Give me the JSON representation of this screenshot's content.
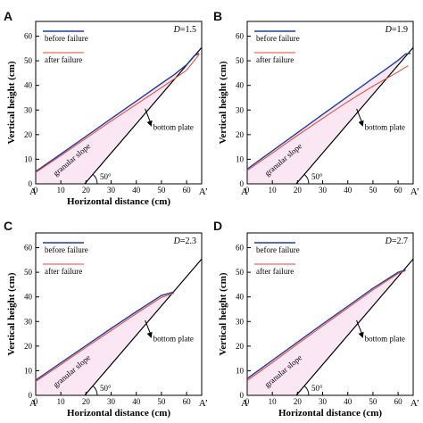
{
  "colors": {
    "before": "#1f3f9a",
    "after": "#e0483a",
    "fill": "#fbe6f4",
    "axis": "#000000"
  },
  "chart_data": [
    {
      "type": "line",
      "panel": "A",
      "label_D": "D",
      "label_val": "=1.5",
      "xlabel": "Horizontal distance (cm)",
      "ylabel": "Vertical height (cm)",
      "xlim": [
        0,
        66
      ],
      "ylim": [
        0,
        66
      ],
      "xticks": [
        "0",
        "10",
        "20",
        "30",
        "40",
        "50",
        "60"
      ],
      "yticks": [
        "0",
        "10",
        "20",
        "30",
        "40",
        "50",
        "60"
      ],
      "x_end_labels": [
        "A",
        "A’"
      ],
      "legend": [
        "before failure",
        "after failure"
      ],
      "annotations": {
        "plate": "bottom plate",
        "slope": "granular slope",
        "angle": "50°"
      },
      "series": [
        {
          "name": "before failure",
          "x": [
            0,
            10,
            20,
            30,
            40,
            50,
            55,
            60,
            63,
            65
          ],
          "y": [
            5,
            12.1,
            19.3,
            26.5,
            33.6,
            40.8,
            44.3,
            48.4,
            52,
            53
          ]
        },
        {
          "name": "after failure",
          "x": [
            0,
            10,
            20,
            30,
            40,
            50,
            55,
            60,
            63,
            65
          ],
          "y": [
            4.6,
            11.5,
            18.5,
            25.5,
            32.3,
            39.1,
            42.6,
            46.2,
            50,
            52.5
          ]
        }
      ],
      "bottom_plate": {
        "x": [
          19.5,
          66
        ],
        "y": [
          0,
          55.4
        ]
      }
    },
    {
      "type": "line",
      "panel": "B",
      "label_D": "D",
      "label_val": "=1.9",
      "xlabel": "",
      "ylabel": "Vertical height (cm)",
      "xlim": [
        0,
        66
      ],
      "ylim": [
        0,
        66
      ],
      "xticks": [
        "0",
        "10",
        "20",
        "30",
        "40",
        "50",
        "60"
      ],
      "yticks": [
        "0",
        "10",
        "20",
        "30",
        "40",
        "50",
        "60"
      ],
      "x_end_labels": [
        "A",
        "A’"
      ],
      "legend": [
        "before failure",
        "after failure"
      ],
      "annotations": {
        "plate": "bottom plate",
        "slope": "granular slope",
        "angle": "50°"
      },
      "series": [
        {
          "name": "before failure",
          "x": [
            0,
            10,
            20,
            30,
            40,
            50,
            55,
            60,
            63,
            65
          ],
          "y": [
            6,
            13.4,
            20.8,
            28.2,
            35.5,
            42.9,
            46.5,
            50.2,
            52.8,
            53
          ]
        },
        {
          "name": "after failure",
          "x": [
            0,
            10,
            20,
            30,
            40,
            50,
            55,
            60,
            62,
            64
          ],
          "y": [
            5.4,
            12.5,
            19.7,
            26.6,
            33.4,
            39.7,
            42.6,
            45.5,
            46.8,
            48
          ]
        }
      ],
      "bottom_plate": {
        "x": [
          19.5,
          66
        ],
        "y": [
          0,
          55.4
        ]
      }
    },
    {
      "type": "line",
      "panel": "C",
      "label_D": "D",
      "label_val": "=2.3",
      "xlabel": "Horizontal distance (cm)",
      "ylabel": "Vertical height (cm)",
      "xlim": [
        0,
        66
      ],
      "ylim": [
        0,
        66
      ],
      "xticks": [
        "0",
        "10",
        "20",
        "30",
        "40",
        "50",
        "60"
      ],
      "yticks": [
        "0",
        "10",
        "20",
        "30",
        "40",
        "50",
        "60"
      ],
      "x_end_labels": [
        "A",
        "A’"
      ],
      "legend": [
        "before failure",
        "after failure"
      ],
      "annotations": {
        "plate": "bottom plate",
        "slope": "granular slope",
        "angle": "50°"
      },
      "series": [
        {
          "name": "before failure",
          "x": [
            0,
            10,
            20,
            30,
            40,
            50,
            55
          ],
          "y": [
            6.2,
            13.2,
            20.2,
            27.2,
            34,
            40.6,
            42
          ]
        },
        {
          "name": "after failure",
          "x": [
            0,
            10,
            20,
            30,
            40,
            50,
            55
          ],
          "y": [
            5.6,
            12.5,
            19.5,
            26.3,
            33.2,
            39.8,
            41.5
          ]
        }
      ],
      "bottom_plate": {
        "x": [
          19.5,
          66
        ],
        "y": [
          0,
          55.4
        ]
      }
    },
    {
      "type": "line",
      "panel": "D",
      "label_D": "D",
      "label_val": "=2.7",
      "xlabel": "Horizontal distance (cm)",
      "ylabel": "Vertical height (cm)",
      "xlim": [
        0,
        66
      ],
      "ylim": [
        0,
        66
      ],
      "xticks": [
        "0",
        "10",
        "20",
        "30",
        "40",
        "50",
        "60"
      ],
      "yticks": [
        "0",
        "10",
        "20",
        "30",
        "40",
        "50",
        "60"
      ],
      "x_end_labels": [
        "A",
        "A’"
      ],
      "legend": [
        "before failure",
        "after failure"
      ],
      "annotations": {
        "plate": "bottom plate",
        "slope": "granular slope",
        "angle": "50°"
      },
      "series": [
        {
          "name": "before failure",
          "x": [
            0,
            10,
            20,
            30,
            40,
            50,
            60,
            63
          ],
          "y": [
            6.8,
            14.2,
            21.6,
            29,
            36.2,
            43.5,
            50,
            51
          ]
        },
        {
          "name": "after failure",
          "x": [
            0,
            10,
            20,
            30,
            40,
            50,
            60,
            63
          ],
          "y": [
            6,
            13.3,
            20.8,
            28.2,
            35.5,
            42.8,
            49.5,
            50.6
          ]
        }
      ],
      "bottom_plate": {
        "x": [
          19.5,
          66
        ],
        "y": [
          0,
          55.4
        ]
      }
    }
  ]
}
